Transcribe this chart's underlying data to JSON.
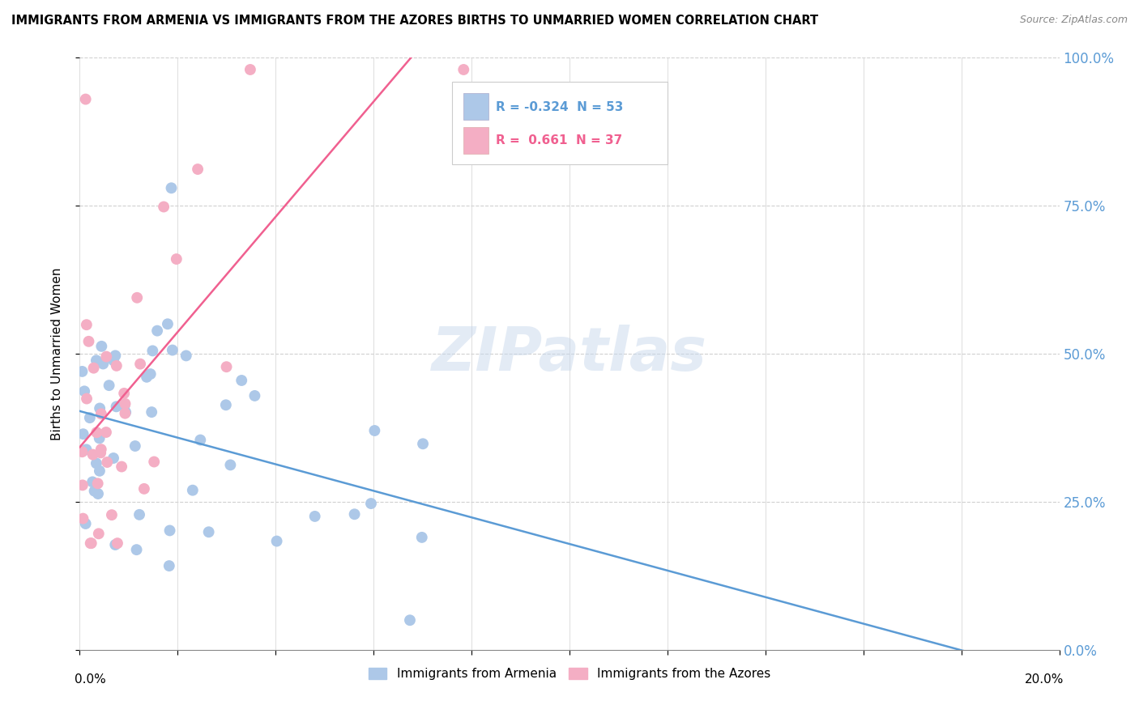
{
  "title": "IMMIGRANTS FROM ARMENIA VS IMMIGRANTS FROM THE AZORES BIRTHS TO UNMARRIED WOMEN CORRELATION CHART",
  "source": "Source: ZipAtlas.com",
  "ylabel": "Births to Unmarried Women",
  "legend_blue": "Immigrants from Armenia",
  "legend_pink": "Immigrants from the Azores",
  "blue_color": "#adc8e8",
  "pink_color": "#f4aec4",
  "blue_line_color": "#5b9bd5",
  "pink_line_color": "#f06090",
  "watermark": "ZIPatlas",
  "blue_R": -0.324,
  "blue_N": 53,
  "pink_R": 0.661,
  "pink_N": 37,
  "xmin": 0.0,
  "xmax": 20.0,
  "ymin": 0.0,
  "ymax": 100.0
}
